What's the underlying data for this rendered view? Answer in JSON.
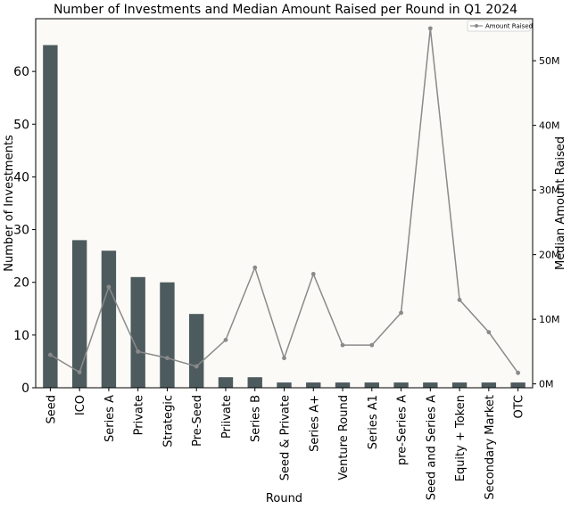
{
  "chart_data": {
    "type": "bar",
    "title": "Number of Investments and Median Amount Raised per Round in Q1 2024",
    "xlabel": "Round",
    "ylabel": "Number of Investments",
    "y2label": "Median Amount Raised",
    "categories": [
      "Seed",
      "ICO",
      "Series A",
      "Private",
      "Strategic",
      "Pre-Seed",
      "Priivate",
      "Series B",
      "Seed & Private",
      "Series A+",
      "Venture Round",
      "Series A1",
      "pre-Series A",
      "Seed and Series A",
      "Equity + Token",
      "Secondary Market",
      "OTC"
    ],
    "ylim": [
      0,
      70
    ],
    "y_ticks": [
      0,
      10,
      20,
      30,
      40,
      50,
      60
    ],
    "y2lim": [
      -0.6,
      56.5
    ],
    "y2_ticks": [
      0,
      10,
      20,
      30,
      40,
      50
    ],
    "y2_tick_labels": [
      "0M",
      "10M",
      "20M",
      "30M",
      "40M",
      "50M"
    ],
    "series": [
      {
        "name": "",
        "kind": "bar",
        "axis": "left",
        "color": "#4d5b5e",
        "values": [
          65,
          28,
          26,
          21,
          20,
          14,
          2,
          2,
          1,
          1,
          1,
          1,
          1,
          1,
          1,
          1,
          1
        ]
      },
      {
        "name": "Amount Raised",
        "kind": "line",
        "axis": "right",
        "unit": "M",
        "color": "#8a8a8a",
        "values": [
          4.5,
          1.8,
          15.0,
          5.0,
          4.0,
          2.7,
          6.8,
          18.0,
          4.0,
          17.0,
          6.0,
          6.0,
          11.0,
          55.0,
          13.0,
          8.0,
          1.7
        ]
      }
    ],
    "grid": false,
    "legend_position": "top-right",
    "plot_background": "#fcfaf6"
  }
}
